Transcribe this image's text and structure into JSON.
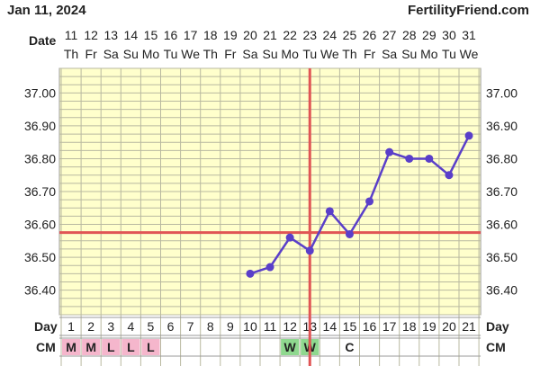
{
  "header": {
    "date": "Jan 11, 2024",
    "site": "FertilityFriend.com"
  },
  "row_labels": {
    "date": "Date",
    "day": "Day",
    "cm": "CM"
  },
  "colors": {
    "grid_bg": "#ffffcc",
    "grid_line": "#b9b9a0",
    "line": "#5a3fc9",
    "coverline": "#e05555",
    "cm_m": "#f5b6cc",
    "cm_l": "#f5b6cc",
    "cm_w": "#8fd88f"
  },
  "chart_data": {
    "type": "line",
    "dates": [
      "11",
      "12",
      "13",
      "14",
      "15",
      "16",
      "17",
      "18",
      "19",
      "20",
      "21",
      "22",
      "23",
      "24",
      "25",
      "26",
      "27",
      "28",
      "29",
      "30",
      "31"
    ],
    "weekdays": [
      "Th",
      "Fr",
      "Sa",
      "Su",
      "Mo",
      "Tu",
      "We",
      "Th",
      "Fr",
      "Sa",
      "Su",
      "Mo",
      "Tu",
      "We",
      "Th",
      "Fr",
      "Sa",
      "Su",
      "Mo",
      "Tu",
      "We"
    ],
    "cycle_days": [
      "1",
      "2",
      "3",
      "4",
      "5",
      "6",
      "7",
      "8",
      "9",
      "10",
      "11",
      "12",
      "13",
      "14",
      "15",
      "16",
      "17",
      "18",
      "19",
      "20",
      "21"
    ],
    "cm": [
      "M",
      "M",
      "L",
      "L",
      "L",
      "",
      "",
      "",
      "",
      "",
      "",
      "W",
      "W",
      "",
      "C",
      "",
      "",
      "",
      "",
      "",
      ""
    ],
    "y_ticks": [
      "37.00",
      "36.90",
      "36.80",
      "36.70",
      "36.60",
      "36.50",
      "36.40"
    ],
    "ylim": [
      36.325,
      37.075
    ],
    "series": [
      {
        "values": [
          null,
          null,
          null,
          null,
          null,
          null,
          null,
          null,
          null,
          36.45,
          36.47,
          36.56,
          36.52,
          36.64,
          36.57,
          36.67,
          36.82,
          36.8,
          36.8,
          36.75,
          36.87
        ]
      }
    ],
    "coverline": 36.575,
    "ovulation_day": "13"
  }
}
